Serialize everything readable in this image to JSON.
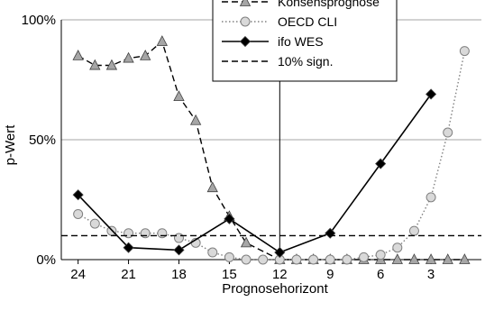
{
  "chart_data": {
    "type": "line",
    "title": "",
    "xlabel": "Prognosehorizont",
    "ylabel": "p-Wert",
    "x_ticks": [
      "24",
      "21",
      "18",
      "15",
      "12",
      "9",
      "6",
      "3"
    ],
    "y_ticks": [
      "0%",
      "50%",
      "100%"
    ],
    "xlim": [
      25,
      0
    ],
    "ylim": [
      0,
      1
    ],
    "grid": "horizontal",
    "legend_position": "top-center",
    "vertical_marker_x": 12,
    "series": [
      {
        "name": "Konsensprognose",
        "style": "dashed",
        "marker": "triangle",
        "color": "#000000",
        "marker_fill": "#a6a6a6",
        "points": [
          [
            24,
            0.85
          ],
          [
            23,
            0.81
          ],
          [
            22,
            0.81
          ],
          [
            21,
            0.84
          ],
          [
            20,
            0.85
          ],
          [
            19,
            0.91
          ],
          [
            18,
            0.68
          ],
          [
            17,
            0.58
          ],
          [
            16,
            0.3
          ],
          [
            15,
            0.18
          ],
          [
            14,
            0.07
          ],
          [
            12,
            0.0
          ],
          [
            11,
            0.0
          ],
          [
            10,
            0.0
          ],
          [
            9,
            0.0
          ],
          [
            8,
            0.0
          ],
          [
            7,
            0.0
          ],
          [
            6,
            0.0
          ],
          [
            5,
            0.0
          ],
          [
            4,
            0.0
          ],
          [
            3,
            0.0
          ],
          [
            2,
            0.0
          ],
          [
            1,
            0.0
          ]
        ]
      },
      {
        "name": "OECD CLI",
        "style": "dotted",
        "marker": "circle",
        "color": "#808080",
        "marker_fill": "#d9d9d9",
        "points": [
          [
            24,
            0.19
          ],
          [
            23,
            0.15
          ],
          [
            22,
            0.12
          ],
          [
            21,
            0.11
          ],
          [
            20,
            0.11
          ],
          [
            19,
            0.11
          ],
          [
            18,
            0.09
          ],
          [
            17,
            0.07
          ],
          [
            16,
            0.03
          ],
          [
            15,
            0.01
          ],
          [
            14,
            0.0
          ],
          [
            13,
            0.0
          ],
          [
            12,
            0.0
          ],
          [
            11,
            0.0
          ],
          [
            10,
            0.0
          ],
          [
            9,
            0.0
          ],
          [
            8,
            0.0
          ],
          [
            7,
            0.01
          ],
          [
            6,
            0.02
          ],
          [
            5,
            0.05
          ],
          [
            4,
            0.12
          ],
          [
            3,
            0.26
          ],
          [
            2,
            0.53
          ],
          [
            1,
            0.87
          ]
        ]
      },
      {
        "name": "ifo WES",
        "style": "solid",
        "marker": "diamond",
        "color": "#000000",
        "marker_fill": "#000000",
        "points": [
          [
            24,
            0.27
          ],
          [
            21,
            0.05
          ],
          [
            18,
            0.04
          ],
          [
            15,
            0.17
          ],
          [
            12,
            0.03
          ],
          [
            9,
            0.11
          ],
          [
            6,
            0.4
          ],
          [
            3,
            0.69
          ]
        ]
      },
      {
        "name": "10% sign.",
        "style": "dashed",
        "marker": "none",
        "color": "#000000",
        "points": [
          [
            25,
            0.1
          ],
          [
            0,
            0.1
          ]
        ]
      }
    ]
  }
}
